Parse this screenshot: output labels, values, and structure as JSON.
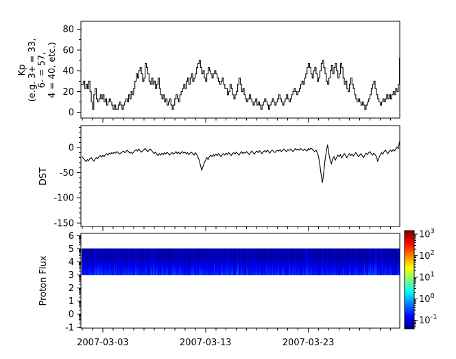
{
  "figure": {
    "background": "#ffffff",
    "line_color": "#000000",
    "text_color": "#000000"
  },
  "x_axis": {
    "domain_days": [
      0.87,
      31.9
    ],
    "minor_every_days": 1,
    "tick_labels": [
      {
        "day": 3,
        "label": "2007-03-03"
      },
      {
        "day": 13,
        "label": "2007-03-13"
      },
      {
        "day": 23,
        "label": "2007-03-23"
      }
    ]
  },
  "chart_data": [
    {
      "type": "line",
      "name": "kp-index",
      "line_style": "step",
      "ylabel": "Kp\n(e.g. 3+ = 33,\n6- = 57,\n4 = 40, etc.)",
      "ylim": [
        -5.5,
        88
      ],
      "yticks": [
        0,
        20,
        40,
        60,
        80
      ],
      "y_minor_step": 10,
      "start_day": 1,
      "points_per_day": 8,
      "values": [
        27,
        30,
        23,
        27,
        23,
        30,
        20,
        10,
        3,
        17,
        23,
        13,
        10,
        13,
        17,
        13,
        17,
        10,
        13,
        7,
        10,
        13,
        10,
        7,
        3,
        7,
        3,
        3,
        7,
        10,
        7,
        3,
        7,
        10,
        13,
        10,
        17,
        13,
        20,
        17,
        23,
        30,
        37,
        33,
        40,
        43,
        37,
        30,
        33,
        47,
        43,
        37,
        30,
        27,
        33,
        27,
        30,
        23,
        27,
        33,
        23,
        17,
        13,
        17,
        10,
        13,
        7,
        10,
        13,
        7,
        3,
        7,
        13,
        17,
        13,
        10,
        17,
        20,
        23,
        27,
        23,
        30,
        33,
        27,
        33,
        37,
        30,
        33,
        37,
        43,
        47,
        50,
        43,
        37,
        40,
        33,
        30,
        37,
        43,
        40,
        37,
        33,
        37,
        40,
        37,
        33,
        30,
        27,
        30,
        33,
        27,
        23,
        23,
        17,
        20,
        27,
        23,
        17,
        13,
        17,
        20,
        27,
        33,
        27,
        20,
        23,
        17,
        13,
        10,
        13,
        17,
        13,
        10,
        7,
        10,
        13,
        7,
        10,
        7,
        3,
        7,
        10,
        13,
        10,
        7,
        3,
        7,
        10,
        13,
        10,
        7,
        10,
        13,
        17,
        13,
        10,
        7,
        10,
        13,
        17,
        13,
        10,
        13,
        17,
        20,
        23,
        20,
        17,
        20,
        23,
        27,
        30,
        27,
        33,
        37,
        43,
        47,
        43,
        37,
        33,
        40,
        43,
        37,
        30,
        33,
        40,
        47,
        50,
        43,
        37,
        30,
        27,
        33,
        40,
        45,
        37,
        43,
        47,
        40,
        33,
        37,
        47,
        43,
        33,
        27,
        30,
        23,
        20,
        27,
        33,
        27,
        23,
        17,
        13,
        10,
        13,
        10,
        7,
        10,
        7,
        3,
        7,
        10,
        13,
        17,
        23,
        27,
        30,
        23,
        17,
        13,
        10,
        7,
        10,
        13,
        10,
        13,
        17,
        13,
        17,
        13,
        17,
        20,
        17,
        23,
        20,
        27,
        52
      ]
    },
    {
      "type": "line",
      "name": "dst-index",
      "line_style": "linear",
      "ylabel": "DST",
      "ylim": [
        -157,
        45
      ],
      "yticks": [
        0,
        -50,
        -100,
        -150
      ],
      "y_minor_step": 10,
      "start_day": 1,
      "points_per_day": 8,
      "values": [
        -18,
        -22,
        -25,
        -28,
        -24,
        -26,
        -22,
        -20,
        -24,
        -27,
        -23,
        -20,
        -22,
        -18,
        -16,
        -19,
        -15,
        -18,
        -14,
        -12,
        -15,
        -11,
        -13,
        -10,
        -12,
        -9,
        -11,
        -8,
        -10,
        -13,
        -11,
        -9,
        -7,
        -10,
        -8,
        -5,
        -8,
        -11,
        -9,
        -12,
        -9,
        -6,
        -4,
        -7,
        -3,
        -6,
        -9,
        -7,
        -4,
        -2,
        -5,
        -8,
        -5,
        -3,
        -6,
        -9,
        -12,
        -9,
        -13,
        -16,
        -12,
        -15,
        -11,
        -14,
        -10,
        -13,
        -9,
        -12,
        -15,
        -12,
        -10,
        -13,
        -11,
        -8,
        -12,
        -9,
        -13,
        -10,
        -8,
        -11,
        -9,
        -12,
        -10,
        -14,
        -11,
        -9,
        -12,
        -15,
        -10,
        -14,
        -18,
        -25,
        -35,
        -45,
        -38,
        -30,
        -25,
        -20,
        -24,
        -18,
        -15,
        -18,
        -14,
        -17,
        -13,
        -16,
        -12,
        -15,
        -18,
        -14,
        -12,
        -15,
        -11,
        -14,
        -10,
        -13,
        -16,
        -12,
        -10,
        -13,
        -9,
        -12,
        -15,
        -11,
        -8,
        -12,
        -9,
        -11,
        -8,
        -11,
        -14,
        -10,
        -7,
        -10,
        -13,
        -9,
        -7,
        -10,
        -6,
        -9,
        -12,
        -8,
        -6,
        -9,
        -5,
        -8,
        -11,
        -7,
        -5,
        -8,
        -10,
        -7,
        -5,
        -7,
        -4,
        -8,
        -5,
        -3,
        -6,
        -8,
        -4,
        -6,
        -3,
        -5,
        -8,
        -5,
        -2,
        -5,
        -3,
        -5,
        -2,
        -4,
        -6,
        -3,
        -5,
        -7,
        -2,
        -4,
        -1,
        -3,
        -6,
        -8,
        -5,
        -10,
        -18,
        -35,
        -55,
        -70,
        -50,
        -25,
        -8,
        6,
        -12,
        -25,
        -32,
        -22,
        -18,
        -25,
        -20,
        -15,
        -18,
        -14,
        -20,
        -16,
        -12,
        -16,
        -20,
        -15,
        -12,
        -16,
        -13,
        -17,
        -14,
        -10,
        -14,
        -18,
        -15,
        -12,
        -16,
        -20,
        -15,
        -11,
        -14,
        -10,
        -8,
        -12,
        -15,
        -11,
        -14,
        -18,
        -27,
        -20,
        -15,
        -10,
        -13,
        -8,
        -5,
        -9,
        -12,
        -7,
        -5,
        -8,
        -4,
        -7,
        -3,
        1,
        -2,
        12
      ]
    },
    {
      "type": "heatmap",
      "name": "proton-flux",
      "ylabel": "Proton Flux",
      "ylim": [
        -1.07,
        6.18
      ],
      "yticks": [
        -1,
        0,
        1,
        2,
        3,
        4,
        5,
        6
      ],
      "y_minor": "log-decade",
      "band_y": [
        3,
        5
      ],
      "band_log10_flux_range": [
        -1.35,
        -0.45
      ],
      "noise_seed": 7,
      "colorbar": {
        "colormap": "jet",
        "log10_range": [
          -1.39,
          3.16
        ],
        "tick_base": "10",
        "tick_exponents": [
          3,
          2,
          1,
          0,
          -1
        ]
      }
    }
  ]
}
